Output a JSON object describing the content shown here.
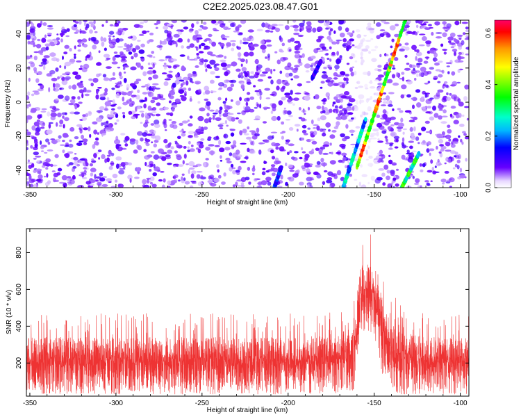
{
  "title": "C2E2.2025.023.08.47.G01",
  "chart_data": [
    {
      "type": "heatmap",
      "xlabel": "Height of straight line (km)",
      "ylabel": "Frequency (Hz)",
      "xlim": [
        -352,
        -95
      ],
      "ylim": [
        -50,
        48
      ],
      "x_ticks": [
        -350,
        -300,
        -250,
        -200,
        -150,
        -100
      ],
      "y_ticks": [
        -40,
        -20,
        0,
        20,
        40
      ],
      "colorbar": {
        "label": "Normalized spectral amplitude",
        "range": [
          0,
          0.65
        ],
        "ticks": [
          0.0,
          0.2,
          0.4,
          0.6
        ]
      },
      "streaks": [
        {
          "x": [
            -160,
            -132
          ],
          "y": [
            -38,
            48
          ],
          "peak_amplitude": 0.6
        },
        {
          "x": [
            -168,
            -155
          ],
          "y": [
            -50,
            -10
          ],
          "peak_amplitude": 0.3
        },
        {
          "x": [
            -134,
            -124
          ],
          "y": [
            -50,
            -30
          ],
          "peak_amplitude": 0.4
        },
        {
          "x": [
            -208,
            -204
          ],
          "y": [
            -50,
            -38
          ],
          "peak_amplitude": 0.2
        },
        {
          "x": [
            -186,
            -181
          ],
          "y": [
            14,
            24
          ],
          "peak_amplitude": 0.15
        }
      ]
    },
    {
      "type": "line",
      "xlabel": "Height of straight line (km)",
      "ylabel": "SNR (10 * v/v)",
      "xlim": [
        -352,
        -95
      ],
      "ylim": [
        20,
        930
      ],
      "x_ticks": [
        -350,
        -300,
        -250,
        -200,
        -150,
        -100
      ],
      "y_ticks": [
        200,
        400,
        600,
        800
      ],
      "series_color": "#ee3333",
      "envelope": {
        "x": [
          -352,
          -300,
          -250,
          -200,
          -170,
          -162,
          -158,
          -150,
          -145,
          -141,
          -135,
          -120,
          -95
        ],
        "low": [
          30,
          30,
          30,
          30,
          35,
          45,
          320,
          360,
          120,
          40,
          30,
          30,
          30
        ],
        "high": [
          470,
          470,
          470,
          470,
          500,
          540,
          900,
          930,
          720,
          600,
          520,
          470,
          470
        ]
      }
    }
  ]
}
